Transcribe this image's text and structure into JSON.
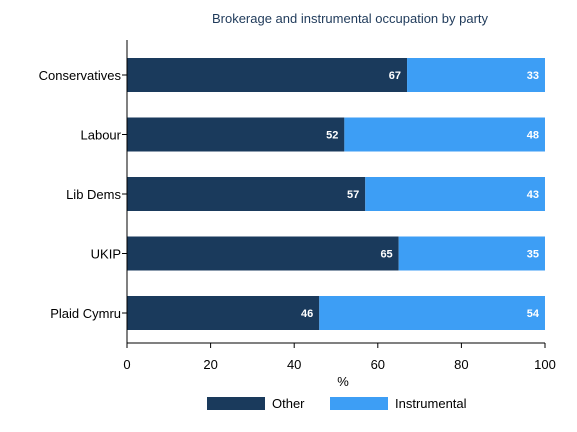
{
  "chart_data": {
    "type": "bar",
    "orientation": "horizontal",
    "stacked": true,
    "title": "Brokerage and instrumental occupation by party",
    "xlabel": "%",
    "ylabel": "",
    "categories": [
      "Conservatives",
      "Labour",
      "Lib Dems",
      "UKIP",
      "Plaid Cymru"
    ],
    "xlim": [
      0,
      100
    ],
    "xticks": [
      0,
      20,
      40,
      60,
      80,
      100
    ],
    "grid": false,
    "legend_position": "bottom",
    "series": [
      {
        "name": "Other",
        "values": [
          67,
          52,
          57,
          65,
          46
        ],
        "color": "#1a3a5c"
      },
      {
        "name": "Instrumental",
        "values": [
          33,
          48,
          43,
          35,
          54
        ],
        "color": "#3d9ef5"
      }
    ],
    "colors": {
      "label_text": "#ffffff",
      "axis": "#000000",
      "title": "#1f3a5a",
      "background": "#ffffff"
    }
  }
}
